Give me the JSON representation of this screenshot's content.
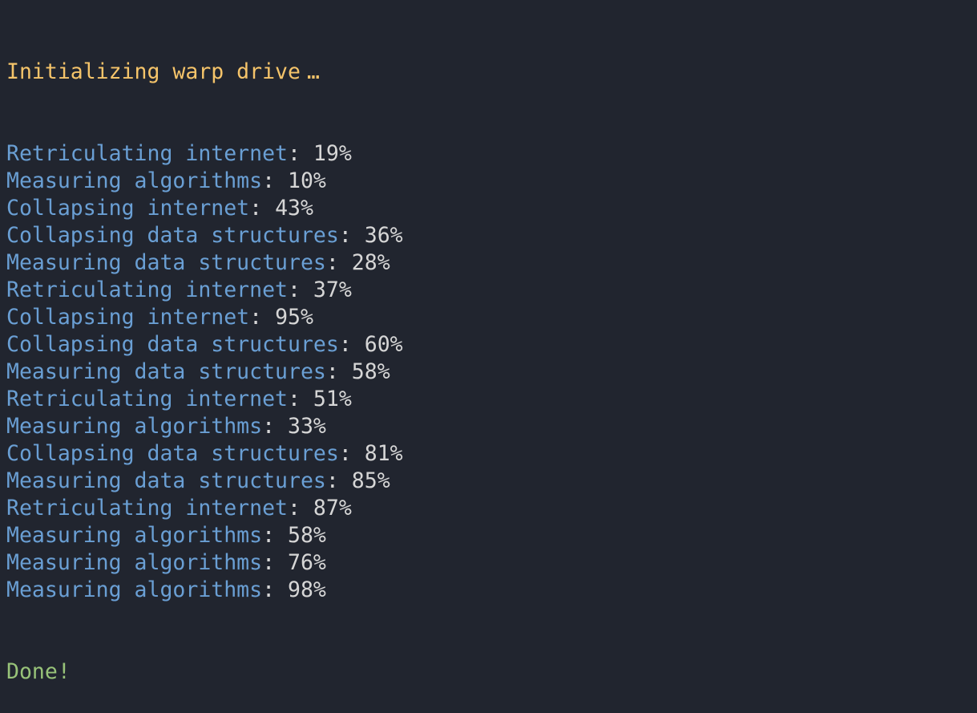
{
  "header": {
    "text": "Initializing warp drive",
    "ellipsis": "…",
    "color": "#f5c46a"
  },
  "lines": [
    {
      "task": "Retriculating internet",
      "percent": "19%"
    },
    {
      "task": "Measuring algorithms",
      "percent": "10%"
    },
    {
      "task": "Collapsing internet",
      "percent": "43%"
    },
    {
      "task": "Collapsing data structures",
      "percent": "36%"
    },
    {
      "task": "Measuring data structures",
      "percent": "28%"
    },
    {
      "task": "Retriculating internet",
      "percent": "37%"
    },
    {
      "task": "Collapsing internet",
      "percent": "95%"
    },
    {
      "task": "Collapsing data structures",
      "percent": "60%"
    },
    {
      "task": "Measuring data structures",
      "percent": "58%"
    },
    {
      "task": "Retriculating internet",
      "percent": "51%"
    },
    {
      "task": "Measuring algorithms",
      "percent": "33%"
    },
    {
      "task": "Collapsing data structures",
      "percent": "81%"
    },
    {
      "task": "Measuring data structures",
      "percent": "85%"
    },
    {
      "task": "Retriculating internet",
      "percent": "87%"
    },
    {
      "task": "Measuring algorithms",
      "percent": "58%"
    },
    {
      "task": "Measuring algorithms",
      "percent": "76%"
    },
    {
      "task": "Measuring algorithms",
      "percent": "98%"
    }
  ],
  "footer": {
    "text": "Done!",
    "color": "#98c379"
  },
  "colors": {
    "background": "#21252f",
    "task": "#6a9fd4",
    "value": "#d6d6d6"
  }
}
